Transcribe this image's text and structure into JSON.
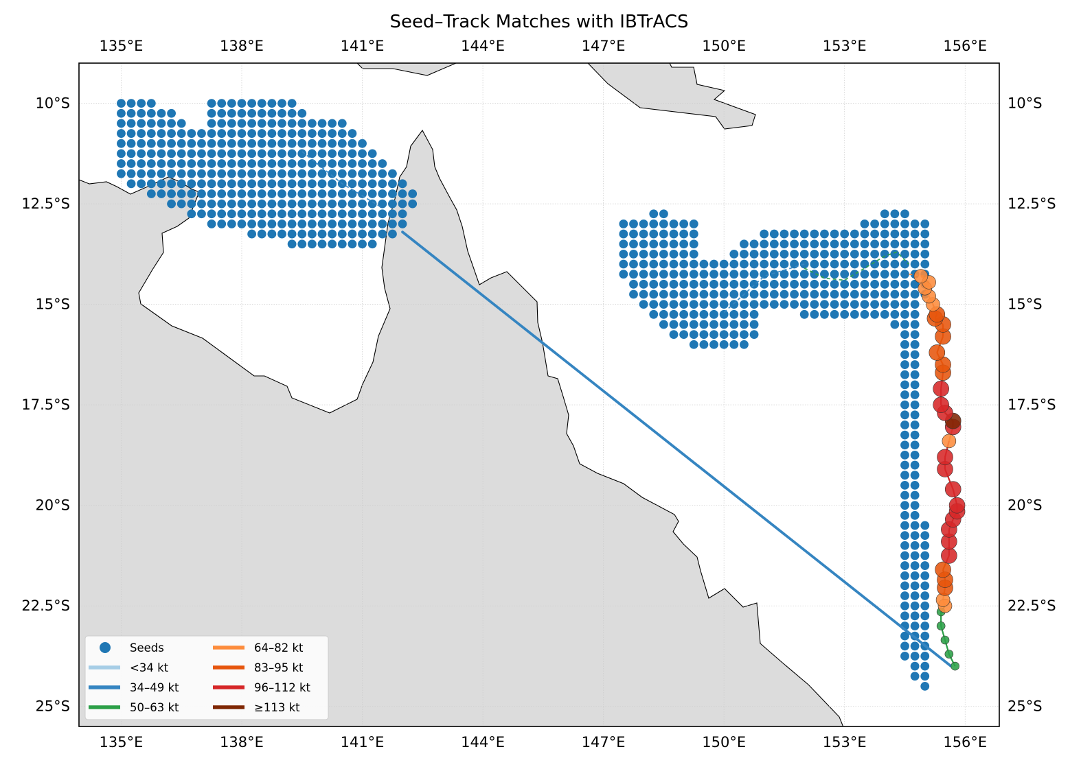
{
  "chart_data": {
    "type": "map",
    "title": "Seed–Track Matches with IBTrACS",
    "projection": "PlateCarree",
    "lon_range": [
      133.95,
      156.85
    ],
    "lat_range": [
      -25.5,
      -9.0
    ],
    "grid": true,
    "x_ticks": [
      {
        "value": 135,
        "label": "135°E"
      },
      {
        "value": 138,
        "label": "138°E"
      },
      {
        "value": 141,
        "label": "141°E"
      },
      {
        "value": 144,
        "label": "144°E"
      },
      {
        "value": 147,
        "label": "147°E"
      },
      {
        "value": 150,
        "label": "150°E"
      },
      {
        "value": 153,
        "label": "153°E"
      },
      {
        "value": 156,
        "label": "156°E"
      }
    ],
    "y_ticks": [
      {
        "value": -10,
        "label": "10°S"
      },
      {
        "value": -12.5,
        "label": "12.5°S"
      },
      {
        "value": -15,
        "label": "15°S"
      },
      {
        "value": -17.5,
        "label": "17.5°S"
      },
      {
        "value": -20,
        "label": "20°S"
      },
      {
        "value": -22.5,
        "label": "22.5°S"
      },
      {
        "value": -25,
        "label": "25°S"
      }
    ],
    "colors": {
      "land": "#dcdcdc",
      "coast": "#000000",
      "seeds": "#1f77b4",
      "grid": "#cccccc"
    },
    "legend": {
      "placement": "lower-left",
      "entries": [
        {
          "label": "Seeds",
          "kind": "marker",
          "color": "#1f77b4"
        },
        {
          "label": "<34 kt",
          "kind": "line",
          "color": "#a6cde6"
        },
        {
          "label": "34–49 kt",
          "kind": "line",
          "color": "#3585c1"
        },
        {
          "label": "50–63 kt",
          "kind": "line",
          "color": "#2ca048"
        },
        {
          "label": "64–82 kt",
          "kind": "line",
          "color": "#fd8c3c"
        },
        {
          "label": "83–95 kt",
          "kind": "line",
          "color": "#e6550d"
        },
        {
          "label": "96–112 kt",
          "kind": "line",
          "color": "#d62728"
        },
        {
          "label": "≥113 kt",
          "kind": "line",
          "color": "#7f2704"
        }
      ]
    },
    "seed_grid_step_deg": 0.25,
    "seed_rows_west": [
      {
        "lat": -10.0,
        "spans": [
          [
            135.0,
            135.75
          ],
          [
            137.25,
            139.25
          ]
        ]
      },
      {
        "lat": -10.25,
        "spans": [
          [
            135.0,
            136.25
          ],
          [
            137.25,
            139.5
          ]
        ]
      },
      {
        "lat": -10.5,
        "spans": [
          [
            135.0,
            136.5
          ],
          [
            137.25,
            140.5
          ]
        ]
      },
      {
        "lat": -10.75,
        "spans": [
          [
            135.0,
            140.75
          ]
        ]
      },
      {
        "lat": -11.0,
        "spans": [
          [
            135.0,
            141.0
          ]
        ]
      },
      {
        "lat": -11.25,
        "spans": [
          [
            135.0,
            141.25
          ]
        ]
      },
      {
        "lat": -11.5,
        "spans": [
          [
            135.0,
            141.5
          ]
        ]
      },
      {
        "lat": -11.75,
        "spans": [
          [
            135.0,
            141.75
          ]
        ]
      },
      {
        "lat": -12.0,
        "spans": [
          [
            135.25,
            142.0
          ]
        ]
      },
      {
        "lat": -12.25,
        "spans": [
          [
            135.75,
            142.25
          ]
        ]
      },
      {
        "lat": -12.5,
        "spans": [
          [
            136.25,
            142.25
          ]
        ]
      },
      {
        "lat": -12.75,
        "spans": [
          [
            136.75,
            142.0
          ]
        ]
      },
      {
        "lat": -13.0,
        "spans": [
          [
            137.25,
            142.0
          ]
        ]
      },
      {
        "lat": -13.25,
        "spans": [
          [
            138.25,
            141.75
          ]
        ]
      },
      {
        "lat": -13.5,
        "spans": [
          [
            139.25,
            141.25
          ]
        ]
      }
    ],
    "seed_rows_east": [
      {
        "lat": -12.75,
        "spans": [
          [
            148.25,
            148.5
          ],
          [
            154.0,
            154.5
          ]
        ]
      },
      {
        "lat": -13.0,
        "spans": [
          [
            147.5,
            149.25
          ],
          [
            153.5,
            155.0
          ]
        ]
      },
      {
        "lat": -13.25,
        "spans": [
          [
            147.5,
            149.25
          ],
          [
            151.0,
            153.0
          ],
          [
            153.25,
            155.0
          ]
        ]
      },
      {
        "lat": -13.5,
        "spans": [
          [
            147.5,
            149.25
          ],
          [
            150.5,
            155.0
          ]
        ]
      },
      {
        "lat": -13.75,
        "spans": [
          [
            147.5,
            149.25
          ],
          [
            150.25,
            155.0
          ]
        ]
      },
      {
        "lat": -14.0,
        "spans": [
          [
            147.5,
            155.0
          ]
        ]
      },
      {
        "lat": -14.25,
        "spans": [
          [
            147.5,
            155.0
          ]
        ]
      },
      {
        "lat": -14.5,
        "spans": [
          [
            147.75,
            155.0
          ]
        ]
      },
      {
        "lat": -14.75,
        "spans": [
          [
            147.75,
            155.0
          ]
        ]
      },
      {
        "lat": -15.0,
        "spans": [
          [
            148.0,
            154.75
          ]
        ]
      },
      {
        "lat": -15.25,
        "spans": [
          [
            148.25,
            150.75
          ],
          [
            152.0,
            154.75
          ]
        ]
      },
      {
        "lat": -15.5,
        "spans": [
          [
            148.5,
            150.75
          ],
          [
            154.25,
            154.75
          ]
        ]
      },
      {
        "lat": -15.75,
        "spans": [
          [
            148.75,
            150.75
          ],
          [
            154.5,
            154.75
          ]
        ]
      },
      {
        "lat": -16.0,
        "spans": [
          [
            149.25,
            150.5
          ],
          [
            154.5,
            154.75
          ]
        ]
      }
    ],
    "seed_col_south": [
      {
        "lon": 154.5,
        "lat_range": [
          -16.0,
          -23.75
        ]
      },
      {
        "lon": 154.75,
        "lat_range": [
          -16.0,
          -24.25
        ]
      },
      {
        "lon": 155.0,
        "lat_range": [
          -20.5,
          -24.5
        ]
      }
    ],
    "straight_match_line": {
      "color": "#3585c1",
      "from": [
        142.0,
        -13.2
      ],
      "to": [
        155.65,
        -24.0
      ]
    },
    "weak_tracks": [
      {
        "color": "#2ca048",
        "points": [
          [
            155.75,
            -24.0
          ],
          [
            155.6,
            -23.7
          ],
          [
            155.5,
            -23.35
          ],
          [
            155.4,
            -23.0
          ],
          [
            155.4,
            -22.5
          ]
        ]
      },
      {
        "color": "#2ca048",
        "points": [
          [
            152.0,
            -14.1
          ],
          [
            152.5,
            -14.35
          ],
          [
            153.0,
            -14.4
          ],
          [
            153.5,
            -14.1
          ],
          [
            154.0,
            -13.8
          ],
          [
            154.3,
            -13.7
          ],
          [
            154.6,
            -14.0
          ]
        ]
      },
      {
        "color": "#fd8c3c",
        "points": [
          [
            154.6,
            -14.25
          ],
          [
            155.0,
            -14.3
          ]
        ]
      },
      {
        "color": "#3585c1",
        "points": [
          [
            139.5,
            -11.2
          ],
          [
            140.5,
            -12.0
          ],
          [
            141.5,
            -12.6
          ]
        ]
      },
      {
        "color": "#3585c1",
        "points": [
          [
            150.0,
            -15.2
          ],
          [
            151.0,
            -14.3
          ],
          [
            152.0,
            -14.0
          ]
        ]
      }
    ],
    "track_points": [
      {
        "lon": 155.75,
        "lat": -24.0,
        "kt": 55
      },
      {
        "lon": 155.6,
        "lat": -23.7,
        "kt": 55
      },
      {
        "lon": 155.5,
        "lat": -23.35,
        "kt": 55
      },
      {
        "lon": 155.4,
        "lat": -23.0,
        "kt": 55
      },
      {
        "lon": 155.4,
        "lat": -22.65,
        "kt": 55
      },
      {
        "lon": 155.5,
        "lat": -22.5,
        "kt": 70
      },
      {
        "lon": 155.45,
        "lat": -22.35,
        "kt": 75
      },
      {
        "lon": 155.5,
        "lat": -22.05,
        "kt": 90
      },
      {
        "lon": 155.5,
        "lat": -21.85,
        "kt": 90
      },
      {
        "lon": 155.45,
        "lat": -21.6,
        "kt": 90
      },
      {
        "lon": 155.6,
        "lat": -21.25,
        "kt": 100
      },
      {
        "lon": 155.6,
        "lat": -20.9,
        "kt": 100
      },
      {
        "lon": 155.6,
        "lat": -20.6,
        "kt": 100
      },
      {
        "lon": 155.7,
        "lat": -20.35,
        "kt": 100
      },
      {
        "lon": 155.8,
        "lat": -20.15,
        "kt": 100
      },
      {
        "lon": 155.8,
        "lat": -20.0,
        "kt": 100
      },
      {
        "lon": 155.7,
        "lat": -19.6,
        "kt": 100
      },
      {
        "lon": 155.5,
        "lat": -19.1,
        "kt": 100
      },
      {
        "lon": 155.5,
        "lat": -18.8,
        "kt": 100
      },
      {
        "lon": 155.6,
        "lat": -18.4,
        "kt": 80
      },
      {
        "lon": 155.7,
        "lat": -18.05,
        "kt": 105
      },
      {
        "lon": 155.7,
        "lat": -17.9,
        "kt": 120
      },
      {
        "lon": 155.5,
        "lat": -17.7,
        "kt": 105
      },
      {
        "lon": 155.4,
        "lat": -17.5,
        "kt": 100
      },
      {
        "lon": 155.4,
        "lat": -17.1,
        "kt": 100
      },
      {
        "lon": 155.45,
        "lat": -16.7,
        "kt": 90
      },
      {
        "lon": 155.45,
        "lat": -16.5,
        "kt": 90
      },
      {
        "lon": 155.3,
        "lat": -16.2,
        "kt": 90
      },
      {
        "lon": 155.45,
        "lat": -15.8,
        "kt": 90
      },
      {
        "lon": 155.45,
        "lat": -15.5,
        "kt": 90
      },
      {
        "lon": 155.25,
        "lat": -15.35,
        "kt": 90
      },
      {
        "lon": 155.3,
        "lat": -15.25,
        "kt": 85
      },
      {
        "lon": 155.2,
        "lat": -15.0,
        "kt": 70
      },
      {
        "lon": 155.1,
        "lat": -14.8,
        "kt": 70
      },
      {
        "lon": 155.0,
        "lat": -14.6,
        "kt": 70
      },
      {
        "lon": 155.1,
        "lat": -14.45,
        "kt": 70
      },
      {
        "lon": 154.9,
        "lat": -14.3,
        "kt": 66
      }
    ]
  }
}
